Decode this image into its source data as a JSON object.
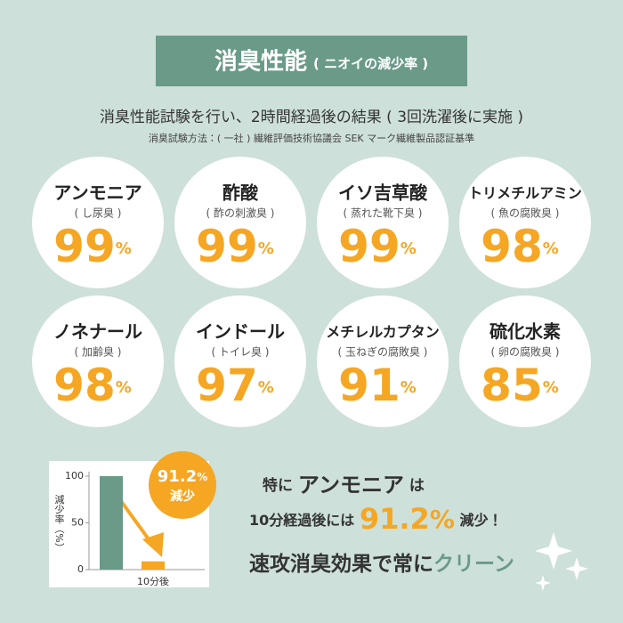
{
  "header": {
    "title": "消臭性能",
    "subtitle": "( ニオイの減少率 )"
  },
  "intro": {
    "line1": "消臭性能試験を行い、2時間経過後の結果 ( 3回洗濯後に実施 )",
    "line2": "消臭試験方法：( 一社 ) 繊維評価技術協議会 SEK マーク繊維製品認証基準"
  },
  "odors": [
    {
      "name": "アンモニア",
      "note": "( し尿臭 )",
      "value": 99,
      "unit": "%"
    },
    {
      "name": "酢酸",
      "note": "( 酢の刺激臭 )",
      "value": 99,
      "unit": "%"
    },
    {
      "name": "イソ吉草酸",
      "note": "( 蒸れた靴下臭 )",
      "value": 99,
      "unit": "%"
    },
    {
      "name": "トリメチルアミン",
      "note": "( 魚の腐敗臭 )",
      "value": 98,
      "unit": "%"
    },
    {
      "name": "ノネナール",
      "note": "( 加齢臭 )",
      "value": 98,
      "unit": "%"
    },
    {
      "name": "インドール",
      "note": "( トイレ臭 )",
      "value": 97,
      "unit": "%"
    },
    {
      "name": "メチレルカプタン",
      "note": "( 玉ねぎの腐敗臭 )",
      "value": 91,
      "unit": "%"
    },
    {
      "name": "硫化水素",
      "note": "( 卵の腐敗臭 )",
      "value": 85,
      "unit": "%"
    }
  ],
  "chart": {
    "type": "bar",
    "ylabel": "減少率（%）",
    "categories": [
      null,
      "10分後"
    ],
    "values": [
      100,
      8.8
    ],
    "colors": [
      "#6a9a88",
      "#f5a623"
    ],
    "ylim": [
      0,
      100
    ],
    "yticks": [
      0,
      50,
      100
    ]
  },
  "badge": {
    "value": 91.2,
    "unit": "%",
    "label": "減少"
  },
  "callout": {
    "line1": {
      "before": "特に",
      "highlight": "アンモニア",
      "after": "は"
    },
    "line2": {
      "before": "10分経過後には",
      "value": 91.2,
      "unit": "%",
      "after": "減少！"
    },
    "line3": {
      "before": "速攻消臭効果で常に",
      "highlight": "クリーン"
    }
  }
}
